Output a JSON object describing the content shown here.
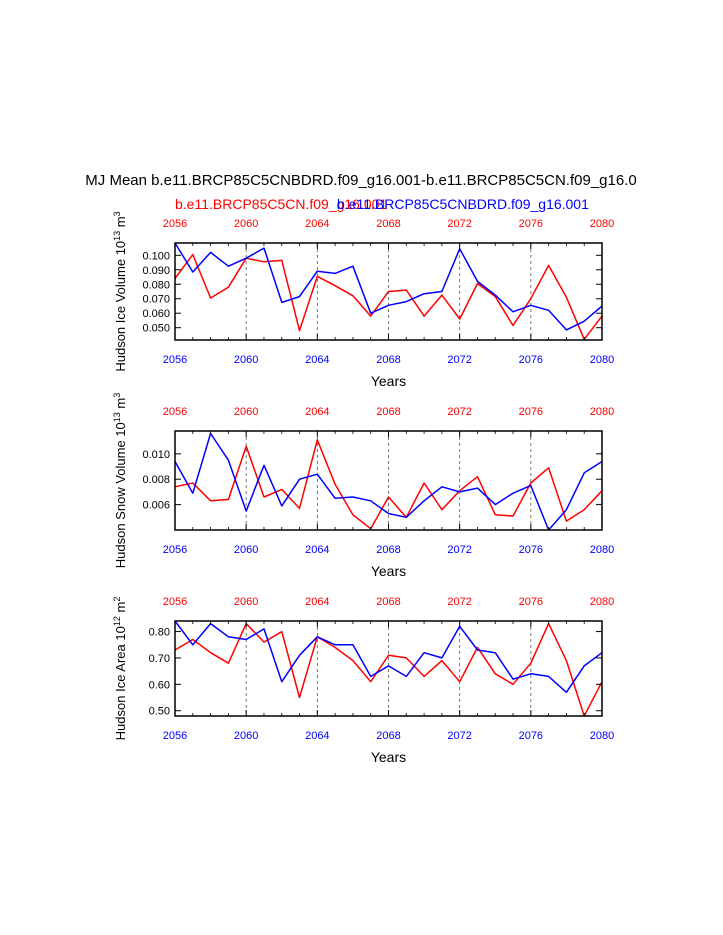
{
  "figure": {
    "title": "MJ Mean b.e11.BRCP85C5CNBDRD.f09_g16.001-b.e11.BRCP85C5CN.f09_g16.0",
    "legend_red": "b.e11.BRCP85C5CN.f09_g16.001",
    "legend_blue": "b.e11.BRCP85C5CNBDRD.f09_g16.001",
    "colors": {
      "red": "#ff0000",
      "blue": "#0000ff",
      "axis": "#000000"
    }
  },
  "chart_data": [
    {
      "type": "line",
      "name": "ice-volume",
      "ylabel": "Hudson Ice Volume 10",
      "ylabel_exp": "13",
      "ylabel_unit": "m",
      "ylabel_unit_exp": "3",
      "xlabel": "Years",
      "xlim": [
        2056,
        2080
      ],
      "ylim": [
        0.0415,
        0.1085
      ],
      "yticks": [
        0.05,
        0.06,
        0.07,
        0.08,
        0.09,
        0.1
      ],
      "ytick_labels": [
        "0.050",
        "0.060",
        "0.070",
        "0.080",
        "0.090",
        "0.100"
      ],
      "xticks": [
        2056,
        2060,
        2064,
        2068,
        2072,
        2076,
        2080
      ],
      "xtick_labels": [
        "2056",
        "2060",
        "2064",
        "2068",
        "2072",
        "2076",
        "2080"
      ],
      "x": [
        2056,
        2057,
        2058,
        2059,
        2060,
        2061,
        2062,
        2063,
        2064,
        2065,
        2066,
        2067,
        2068,
        2069,
        2070,
        2071,
        2072,
        2073,
        2074,
        2075,
        2076,
        2077,
        2078,
        2079,
        2080
      ],
      "series": [
        {
          "color": "#ff0000",
          "values": [
            0.084,
            0.1005,
            0.0705,
            0.078,
            0.098,
            0.0955,
            0.0965,
            0.048,
            0.0855,
            0.079,
            0.072,
            0.058,
            0.075,
            0.076,
            0.058,
            0.0725,
            0.056,
            0.0805,
            0.0715,
            0.0515,
            0.07,
            0.093,
            0.071,
            0.042,
            0.058
          ]
        },
        {
          "color": "#0000ff",
          "values": [
            0.1085,
            0.0885,
            0.102,
            0.0925,
            0.098,
            0.105,
            0.0675,
            0.0715,
            0.089,
            0.0875,
            0.0925,
            0.06,
            0.0655,
            0.068,
            0.0735,
            0.075,
            0.1045,
            0.082,
            0.0725,
            0.061,
            0.0655,
            0.062,
            0.0485,
            0.0545,
            0.065
          ]
        }
      ]
    },
    {
      "type": "line",
      "name": "snow-volume",
      "ylabel": "Hudson Snow Volume 10",
      "ylabel_exp": "13",
      "ylabel_unit": "m",
      "ylabel_unit_exp": "3",
      "xlabel": "Years",
      "xlim": [
        2056,
        2080
      ],
      "ylim": [
        0.004,
        0.0118
      ],
      "yticks": [
        0.006,
        0.008,
        0.01
      ],
      "ytick_labels": [
        "0.006",
        "0.008",
        "0.010"
      ],
      "xticks": [
        2056,
        2060,
        2064,
        2068,
        2072,
        2076,
        2080
      ],
      "xtick_labels": [
        "2056",
        "2060",
        "2064",
        "2068",
        "2072",
        "2076",
        "2080"
      ],
      "x": [
        2056,
        2057,
        2058,
        2059,
        2060,
        2061,
        2062,
        2063,
        2064,
        2065,
        2066,
        2067,
        2068,
        2069,
        2070,
        2071,
        2072,
        2073,
        2074,
        2075,
        2076,
        2077,
        2078,
        2079,
        2080
      ],
      "series": [
        {
          "color": "#ff0000",
          "values": [
            0.0074,
            0.0077,
            0.0063,
            0.0064,
            0.0106,
            0.0066,
            0.0072,
            0.0057,
            0.0111,
            0.0076,
            0.0052,
            0.0041,
            0.0066,
            0.005,
            0.0077,
            0.0056,
            0.0071,
            0.0082,
            0.0052,
            0.0051,
            0.0077,
            0.0089,
            0.0047,
            0.0056,
            0.0071
          ]
        },
        {
          "color": "#0000ff",
          "values": [
            0.0094,
            0.0069,
            0.0116,
            0.0095,
            0.0055,
            0.0091,
            0.0059,
            0.008,
            0.0084,
            0.0065,
            0.0066,
            0.0063,
            0.0053,
            0.005,
            0.0063,
            0.0074,
            0.007,
            0.0073,
            0.006,
            0.0069,
            0.0075,
            0.004,
            0.0056,
            0.0085,
            0.0094
          ]
        }
      ]
    },
    {
      "type": "line",
      "name": "ice-area",
      "ylabel": "Hudson Ice Area 10",
      "ylabel_exp": "12",
      "ylabel_unit": "m",
      "ylabel_unit_exp": "2",
      "xlabel": "Years",
      "xlim": [
        2056,
        2080
      ],
      "ylim": [
        0.48,
        0.84
      ],
      "yticks": [
        0.5,
        0.6,
        0.7,
        0.8
      ],
      "ytick_labels": [
        "0.50",
        "0.60",
        "0.70",
        "0.80"
      ],
      "xticks": [
        2056,
        2060,
        2064,
        2068,
        2072,
        2076,
        2080
      ],
      "xtick_labels": [
        "2056",
        "2060",
        "2064",
        "2068",
        "2072",
        "2076",
        "2080"
      ],
      "x": [
        2056,
        2057,
        2058,
        2059,
        2060,
        2061,
        2062,
        2063,
        2064,
        2065,
        2066,
        2067,
        2068,
        2069,
        2070,
        2071,
        2072,
        2073,
        2074,
        2075,
        2076,
        2077,
        2078,
        2079,
        2080
      ],
      "series": [
        {
          "color": "#ff0000",
          "values": [
            0.73,
            0.77,
            0.72,
            0.68,
            0.83,
            0.76,
            0.8,
            0.55,
            0.78,
            0.74,
            0.69,
            0.61,
            0.71,
            0.7,
            0.63,
            0.69,
            0.61,
            0.74,
            0.64,
            0.6,
            0.68,
            0.83,
            0.69,
            0.48,
            0.61
          ]
        },
        {
          "color": "#0000ff",
          "values": [
            0.84,
            0.75,
            0.83,
            0.78,
            0.77,
            0.81,
            0.61,
            0.71,
            0.78,
            0.75,
            0.75,
            0.63,
            0.67,
            0.63,
            0.72,
            0.7,
            0.82,
            0.73,
            0.72,
            0.62,
            0.64,
            0.63,
            0.57,
            0.67,
            0.72
          ]
        }
      ]
    }
  ]
}
